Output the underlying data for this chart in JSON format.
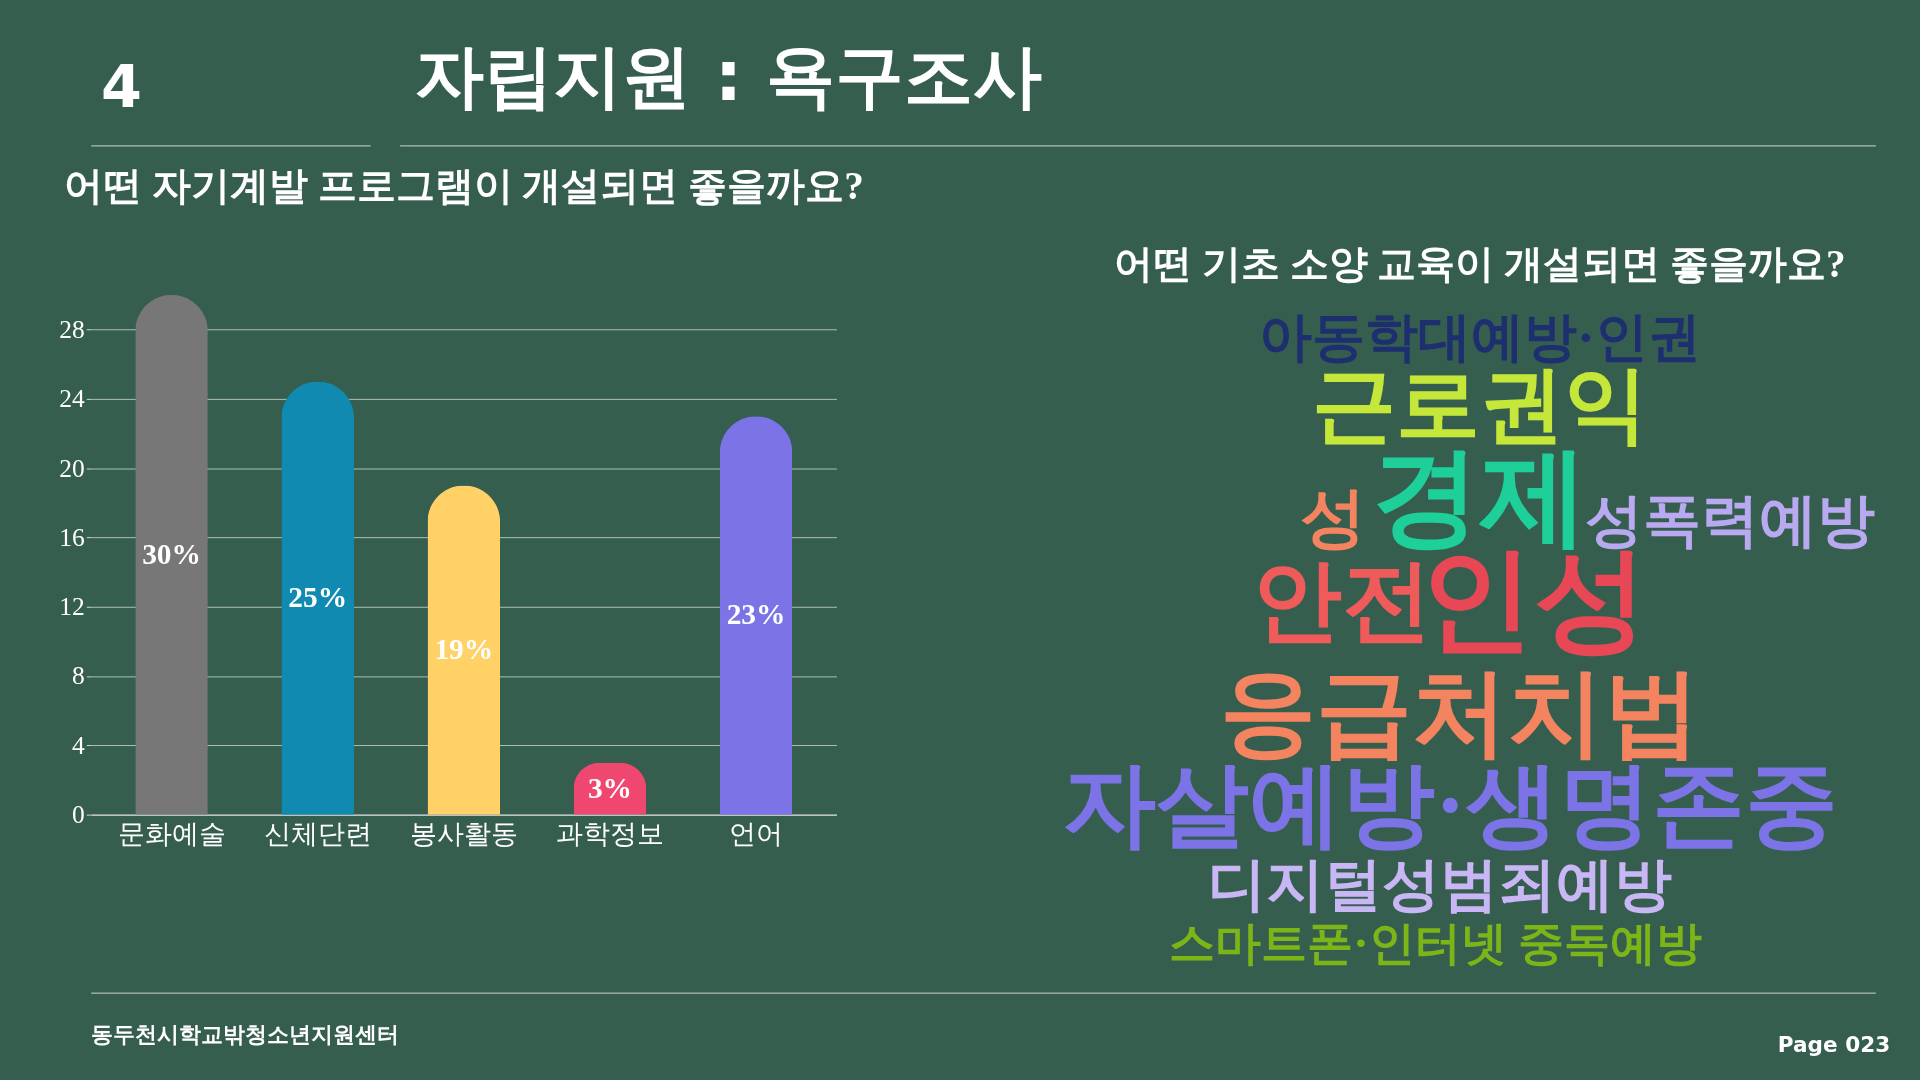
{
  "chart_data": [
    {
      "type": "bar",
      "title": "어떤 자기계발 프로그램이 개설되면 좋을까요?",
      "categories": [
        "문화예술",
        "신체단련",
        "봉사활동",
        "과학정보",
        "언어"
      ],
      "values": [
        30,
        25,
        19,
        3,
        23
      ],
      "value_labels": [
        "30%",
        "25%",
        "19%",
        "3%",
        "23%"
      ],
      "colors": [
        "#777777",
        "#118ab2",
        "#ffd166",
        "#ef476f",
        "#7b73e6"
      ],
      "ylim": [
        0,
        30
      ],
      "yticks": [
        0,
        4,
        8,
        12,
        16,
        20,
        24,
        28
      ],
      "grid": "y",
      "annotations": [
        "4",
        "자립지원 : 욕구조사",
        "동두천시학교밖청소년지원센터",
        "Page 023"
      ]
    },
    {
      "type": "other",
      "title": "어떤 기초 소양 교육이 개설되면 좋을까요?",
      "categories": [
        "아동학대예방·인권",
        "근로권익",
        "성",
        "경제",
        "성폭력예방",
        "안전",
        "인성",
        "응급처치법",
        "자살예방·생명존중",
        "디지털성범죄예방",
        "스마트폰·인터넷 중독예방"
      ],
      "colors": [
        "#1d2f6f",
        "#c5e73a",
        "#f4845f",
        "#1ecf9a",
        "#b8a9f0",
        "#ef5a5a",
        "#e84855",
        "#f4845f",
        "#7b73e6",
        "#c8b6f5",
        "#7cb518"
      ]
    }
  ]
}
